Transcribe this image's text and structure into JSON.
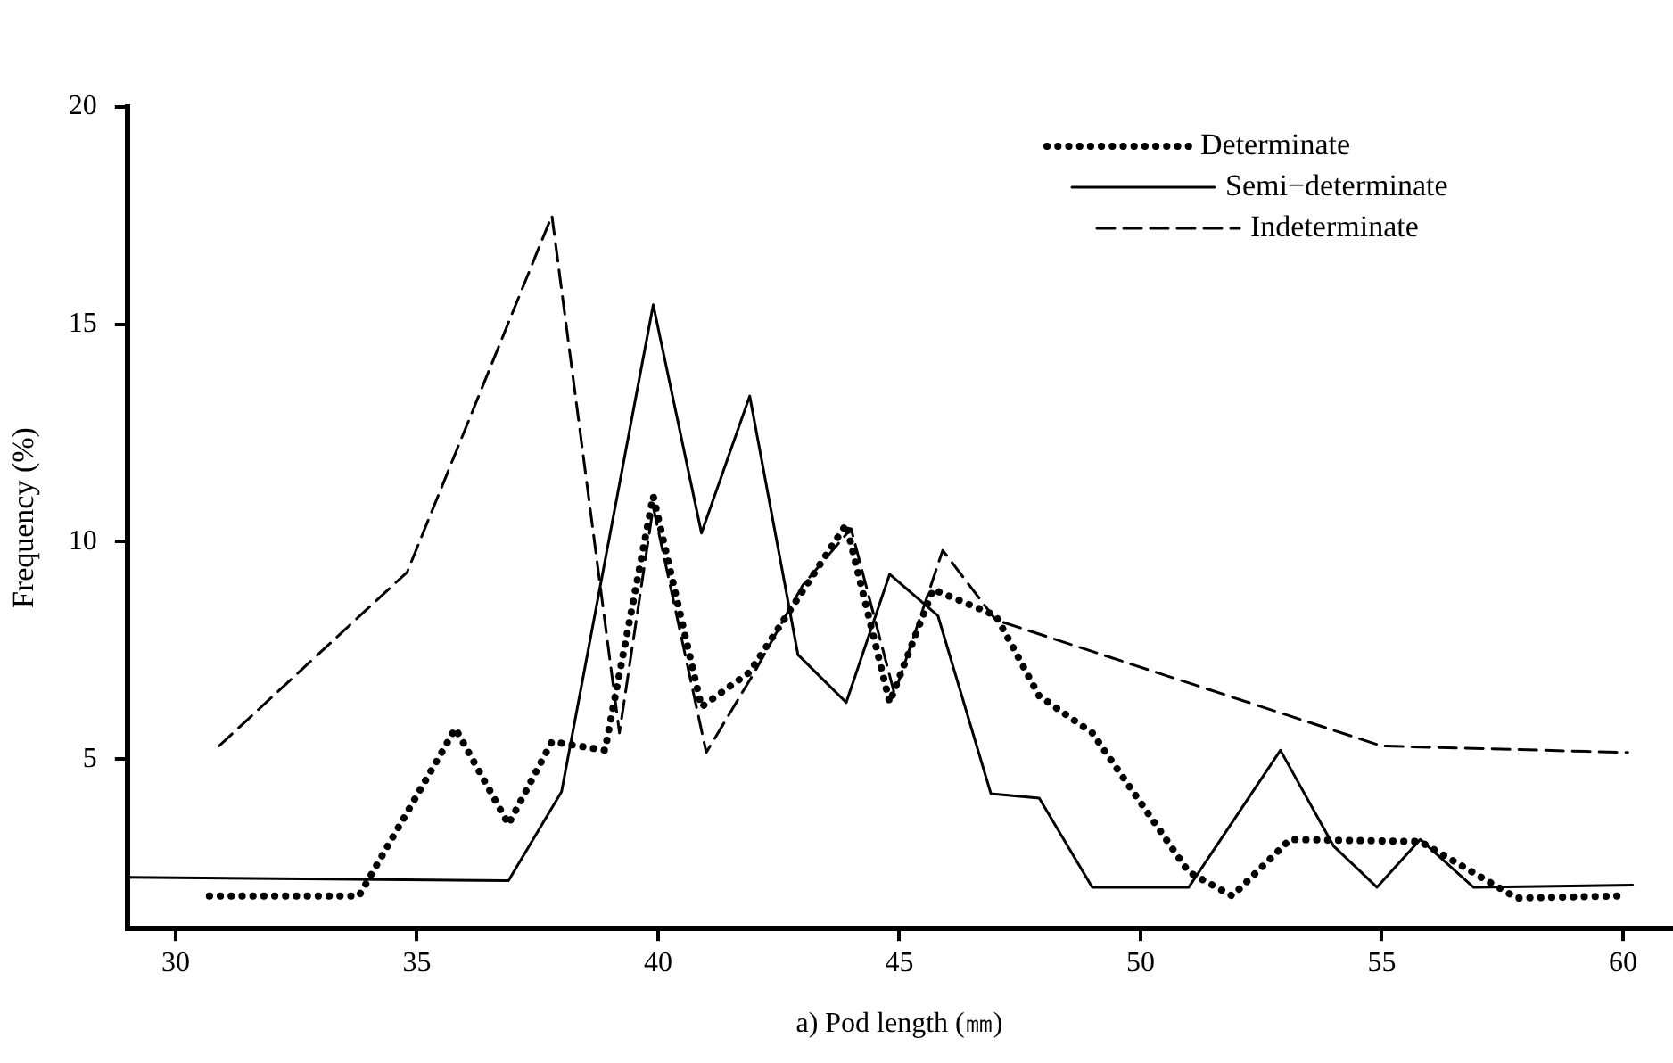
{
  "chart_data": {
    "type": "line",
    "xlabel": "a) Pod length (㎜)",
    "ylabel": "Frequency (%)",
    "xlim": [
      29,
      61
    ],
    "xticks": [
      30,
      35,
      40,
      45,
      50,
      55,
      60
    ],
    "ylim": [
      1.1,
      20
    ],
    "yticks": [
      5,
      10,
      15,
      20
    ],
    "grid": false,
    "legend": "top right",
    "marker": "none",
    "series": [
      {
        "name": "Determinate",
        "color": "#000000",
        "line_style": "dotted",
        "x": [
          30.7,
          33.8,
          35.8,
          36.9,
          37.8,
          38.9,
          39.9,
          40.9,
          41.9,
          43.9,
          44.8,
          45.7,
          47,
          47.9,
          49,
          51,
          51.9,
          53.1,
          55.8,
          57.8,
          60
        ],
        "values": [
          1.85,
          1.85,
          5.7,
          3.5,
          5.4,
          5.2,
          11.05,
          6.2,
          7,
          10.4,
          6.3,
          8.9,
          8.3,
          6.45,
          5.6,
          2.4,
          1.85,
          3.15,
          3.1,
          1.8,
          1.85
        ]
      },
      {
        "name": "Semi−determinate",
        "color": "#000000",
        "line_style": "solid",
        "x": [
          29,
          36.9,
          38,
          39.9,
          40.9,
          41.9,
          42.9,
          43.9,
          44.8,
          45.8,
          46.9,
          47.9,
          49,
          51,
          52.9,
          54,
          54.9,
          55.8,
          56.9,
          60.2
        ],
        "values": [
          2.28,
          2.2,
          4.25,
          15.45,
          10.2,
          13.35,
          7.4,
          6.3,
          9.25,
          8.3,
          4.2,
          4.1,
          2.05,
          2.05,
          5.2,
          3,
          2.05,
          3.15,
          2.05,
          2.1
        ]
      },
      {
        "name": "Indeterminate",
        "color": "#000000",
        "line_style": "dashed",
        "x": [
          30.9,
          34.8,
          37.8,
          39.2,
          39.9,
          41,
          42,
          43,
          44,
          44.9,
          45.9,
          47,
          55,
          60.1
        ],
        "values": [
          5.3,
          9.3,
          17.5,
          5.6,
          10.8,
          5.15,
          7,
          9,
          10.3,
          6.5,
          9.8,
          8.2,
          5.3,
          5.15
        ]
      }
    ]
  }
}
